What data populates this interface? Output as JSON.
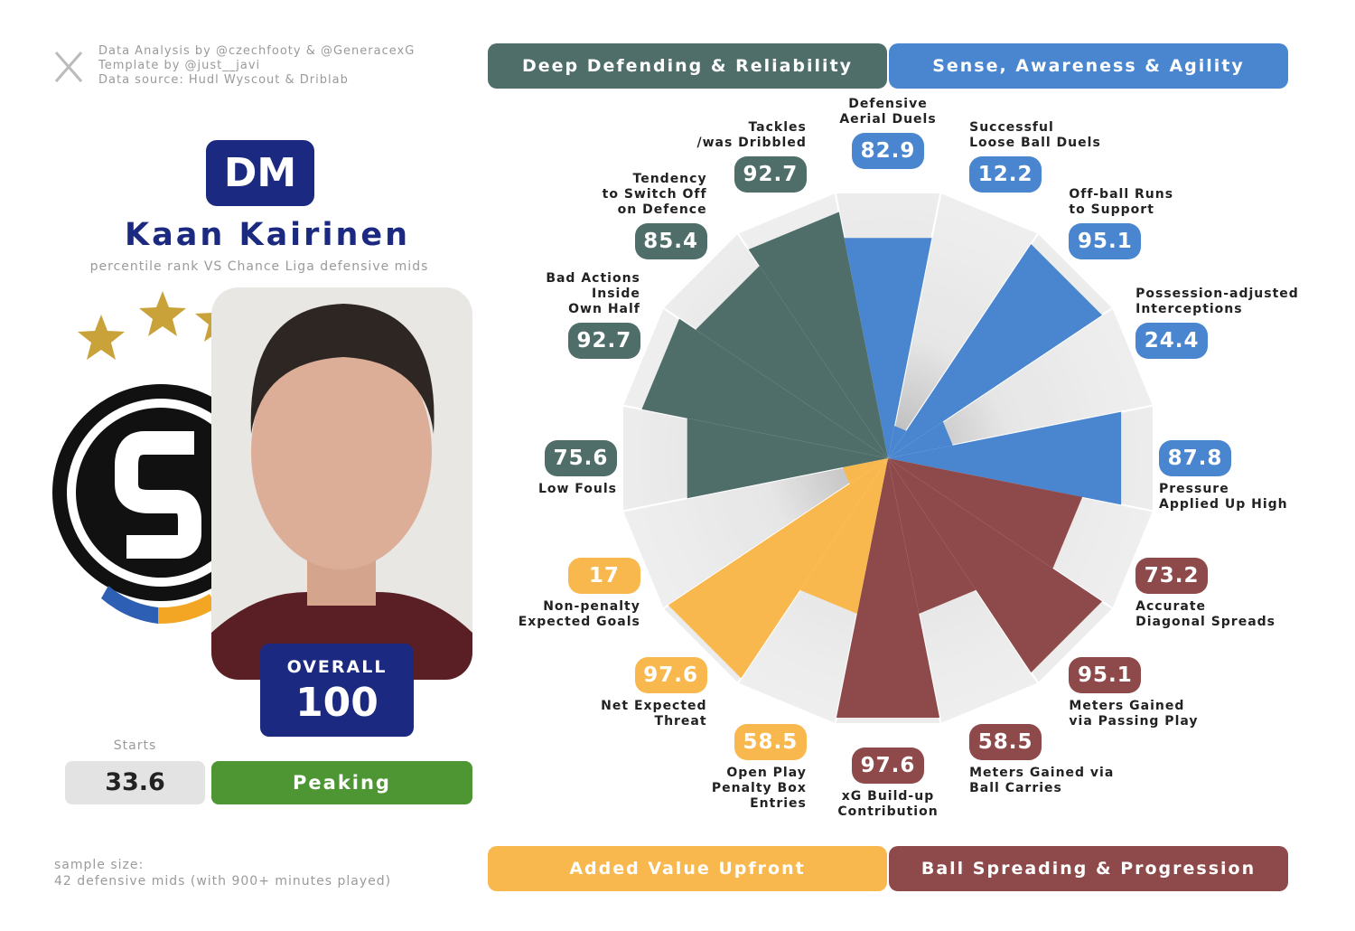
{
  "credits": [
    "Data Analysis by @czechfooty & @GeneracexG",
    "Template by @just__javi",
    "Data source: Hudl Wyscout & Driblab"
  ],
  "player": {
    "position": "DM",
    "name": "Kaan Kairinen",
    "subtitle": "percentile rank VS Chance Liga defensive mids",
    "overall_label": "OVERALL",
    "overall": 100,
    "starts_label": "Starts",
    "starts": 33.6,
    "status": "Peaking"
  },
  "sample": [
    "sample size:",
    "42 defensive mids (with 900+ minutes played)"
  ],
  "chart_data": {
    "type": "pizza",
    "range": [
      0,
      100
    ],
    "series": [
      {
        "name": "Sense, Awareness & Agility",
        "color": "#4a86cf",
        "categories": [
          "Defensive\nAerial Duels",
          "Successful\nLoose Ball Duels",
          "Off-ball Runs\nto Support",
          "Possession-adjusted\nInterceptions",
          "Pressure\nApplied Up High"
        ],
        "values": [
          82.9,
          12.2,
          95.1,
          24.4,
          87.8
        ]
      },
      {
        "name": "Ball Spreading & Progression",
        "color": "#8e4a4a",
        "categories": [
          "Accurate\nDiagonal Spreads",
          "Meters Gained\nvia Passing Play",
          "Meters Gained via\nBall Carries",
          "xG Build-up\nContribution"
        ],
        "values": [
          73.2,
          95.1,
          58.5,
          97.6
        ]
      },
      {
        "name": "Added Value Upfront",
        "color": "#f8b84e",
        "categories": [
          "Open Play\nPenalty Box\nEntries",
          "Net Expected\nThreat",
          "Non-penalty\nExpected Goals"
        ],
        "values": [
          58.5,
          97.6,
          17
        ]
      },
      {
        "name": "Deep Defending & Reliability",
        "color": "#4f6e6a",
        "categories": [
          "Low Fouls",
          "Bad Actions\nInside\nOwn Half",
          "Tendency\nto Switch Off\non Defence",
          "Tackles\n/was Dribbled"
        ],
        "values": [
          75.6,
          92.7,
          85.4,
          92.7
        ]
      }
    ]
  }
}
